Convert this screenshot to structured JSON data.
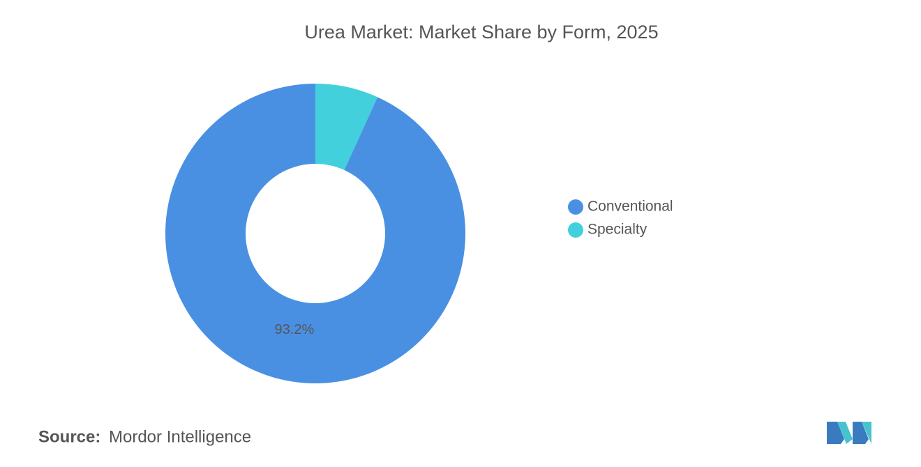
{
  "chart_data": {
    "type": "pie",
    "title": "Urea Market: Market Share by Form, 2025",
    "categories": [
      "Conventional",
      "Specialty"
    ],
    "values": [
      93.2,
      6.8
    ],
    "value_labels": [
      "93.2%",
      null
    ],
    "colors": [
      "#4a90e2",
      "#41d0dc"
    ],
    "legend": "right"
  },
  "footer": {
    "source_label": "Source:",
    "source": "Mordor Intelligence"
  }
}
